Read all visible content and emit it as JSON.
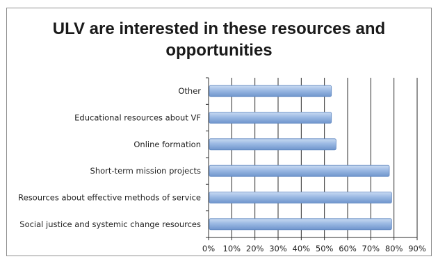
{
  "chart_data": {
    "type": "bar",
    "orientation": "horizontal",
    "title": "ULV are interested in these resources and opportunities",
    "categories": [
      "Other",
      "Educational resources about VF",
      "Online formation",
      "Short-term mission projects",
      "Resources about effective methods of service",
      "Social justice and systemic change resources"
    ],
    "values": [
      53,
      53,
      55,
      78,
      79,
      79
    ],
    "xlim": [
      0,
      90
    ],
    "xticks": [
      "0%",
      "10%",
      "20%",
      "30%",
      "40%",
      "50%",
      "60%",
      "70%",
      "80%",
      "90%"
    ],
    "grid": true,
    "legend": "none",
    "bar_color": "#9bb9e3"
  }
}
